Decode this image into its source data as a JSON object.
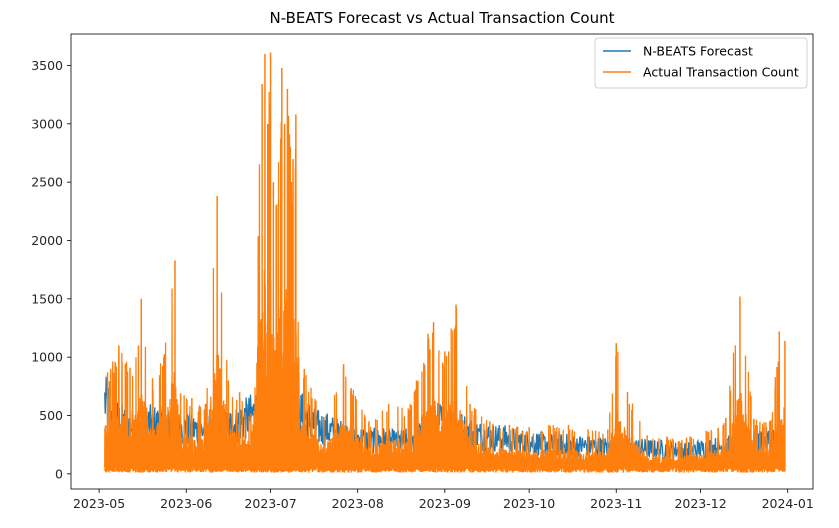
{
  "chart_data": {
    "type": "line",
    "title": "N-BEATS Forecast vs Actual Transaction Count",
    "xlabel": "",
    "ylabel": "",
    "x_range": [
      "2023-05-01",
      "2024-01-01"
    ],
    "ylim": [
      -130,
      3770
    ],
    "grid": false,
    "legend_position": "top-right",
    "x_ticks": [
      "2023-05",
      "2023-06",
      "2023-07",
      "2023-08",
      "2023-09",
      "2023-10",
      "2023-11",
      "2023-12",
      "2024-01"
    ],
    "x_tick_dates": [
      "2023-05-01",
      "2023-06-01",
      "2023-07-01",
      "2023-08-01",
      "2023-09-01",
      "2023-10-01",
      "2023-11-01",
      "2023-12-01",
      "2024-01-01"
    ],
    "y_ticks": [
      0,
      500,
      1000,
      1500,
      2000,
      2500,
      3000,
      3500
    ],
    "y_tick_labels": [
      "0",
      "500",
      "1000",
      "1500",
      "2000",
      "2500",
      "3000",
      "3500"
    ],
    "series": [
      {
        "name": "N-BEATS Forecast",
        "color": "#1f77b4",
        "x": [
          "2023-05-03",
          "2023-05-06",
          "2023-05-10",
          "2023-05-14",
          "2023-05-18",
          "2023-05-22",
          "2023-05-26",
          "2023-05-30",
          "2023-06-03",
          "2023-06-07",
          "2023-06-11",
          "2023-06-15",
          "2023-06-19",
          "2023-06-23",
          "2023-06-27",
          "2023-07-01",
          "2023-07-05",
          "2023-07-09",
          "2023-07-13",
          "2023-07-17",
          "2023-07-21",
          "2023-07-25",
          "2023-07-29",
          "2023-08-02",
          "2023-08-06",
          "2023-08-10",
          "2023-08-14",
          "2023-08-18",
          "2023-08-22",
          "2023-08-26",
          "2023-08-30",
          "2023-09-03",
          "2023-09-07",
          "2023-09-11",
          "2023-09-15",
          "2023-09-19",
          "2023-09-23",
          "2023-09-27",
          "2023-10-01",
          "2023-10-05",
          "2023-10-09",
          "2023-10-13",
          "2023-10-17",
          "2023-10-21",
          "2023-10-25",
          "2023-10-29",
          "2023-11-02",
          "2023-11-06",
          "2023-11-10",
          "2023-11-14",
          "2023-11-18",
          "2023-11-22",
          "2023-11-26",
          "2023-11-30",
          "2023-12-04",
          "2023-12-08",
          "2023-12-12",
          "2023-12-16",
          "2023-12-20",
          "2023-12-24",
          "2023-12-28",
          "2023-12-31"
        ],
        "values": [
          620,
          480,
          420,
          400,
          430,
          420,
          400,
          390,
          380,
          370,
          360,
          400,
          420,
          480,
          540,
          560,
          520,
          520,
          500,
          400,
          380,
          340,
          320,
          300,
          280,
          290,
          270,
          280,
          300,
          380,
          450,
          420,
          380,
          340,
          320,
          310,
          300,
          280,
          270,
          260,
          250,
          250,
          240,
          240,
          230,
          230,
          230,
          220,
          220,
          210,
          210,
          200,
          200,
          210,
          220,
          230,
          240,
          260,
          270,
          280,
          300,
          320
        ]
      },
      {
        "name": "Actual Transaction Count",
        "color": "#ff7f0e",
        "x": [
          "2023-05-04",
          "2023-05-08",
          "2023-05-12",
          "2023-05-15",
          "2023-05-16",
          "2023-05-20",
          "2023-05-24",
          "2023-05-28",
          "2023-05-30",
          "2023-06-03",
          "2023-06-08",
          "2023-06-12",
          "2023-06-16",
          "2023-06-20",
          "2023-06-24",
          "2023-06-28",
          "2023-06-29",
          "2023-06-30",
          "2023-07-01",
          "2023-07-02",
          "2023-07-03",
          "2023-07-05",
          "2023-07-06",
          "2023-07-07",
          "2023-07-08",
          "2023-07-09",
          "2023-07-10",
          "2023-07-11",
          "2023-07-13",
          "2023-07-20",
          "2023-07-27",
          "2023-08-05",
          "2023-08-12",
          "2023-08-19",
          "2023-08-26",
          "2023-08-28",
          "2023-09-01",
          "2023-09-05",
          "2023-09-10",
          "2023-09-17",
          "2023-09-24",
          "2023-10-01",
          "2023-10-08",
          "2023-10-15",
          "2023-10-22",
          "2023-10-29",
          "2023-11-01",
          "2023-11-05",
          "2023-11-12",
          "2023-11-19",
          "2023-11-26",
          "2023-12-03",
          "2023-12-10",
          "2023-12-15",
          "2023-12-20",
          "2023-12-26",
          "2023-12-29",
          "2023-12-31"
        ],
        "values": [
          870,
          1100,
          910,
          1100,
          1500,
          820,
          1000,
          1830,
          690,
          650,
          600,
          2380,
          800,
          700,
          520,
          3340,
          3600,
          3000,
          3610,
          2500,
          2300,
          3480,
          3000,
          3300,
          2800,
          2700,
          3080,
          1000,
          900,
          480,
          940,
          450,
          600,
          560,
          1200,
          1300,
          1050,
          1450,
          600,
          450,
          420,
          400,
          420,
          420,
          380,
          380,
          1120,
          700,
          330,
          320,
          310,
          370,
          480,
          1520,
          470,
          460,
          1220,
          1140
        ]
      }
    ]
  }
}
